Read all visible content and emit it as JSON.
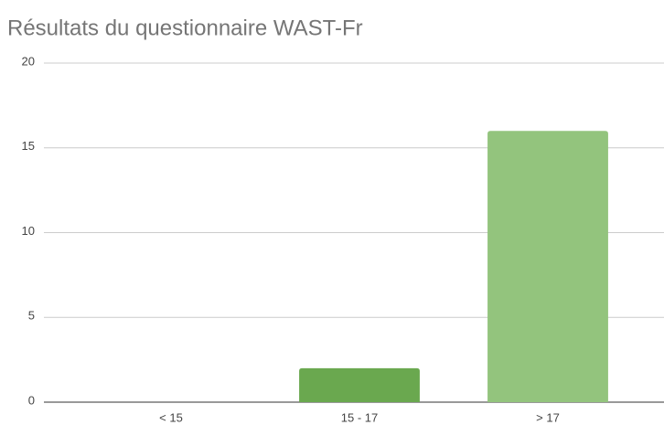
{
  "chart_data": {
    "type": "bar",
    "title": "Résultats du questionnaire WAST-Fr",
    "categories": [
      "< 15",
      "15 - 17",
      "> 17"
    ],
    "values": [
      0,
      2,
      16
    ],
    "colors": [
      "#6aa84f",
      "#6aa84f",
      "#93c47d"
    ],
    "ylim": [
      0,
      20
    ],
    "yticks": [
      0,
      5,
      10,
      15,
      20
    ],
    "grid": true
  }
}
